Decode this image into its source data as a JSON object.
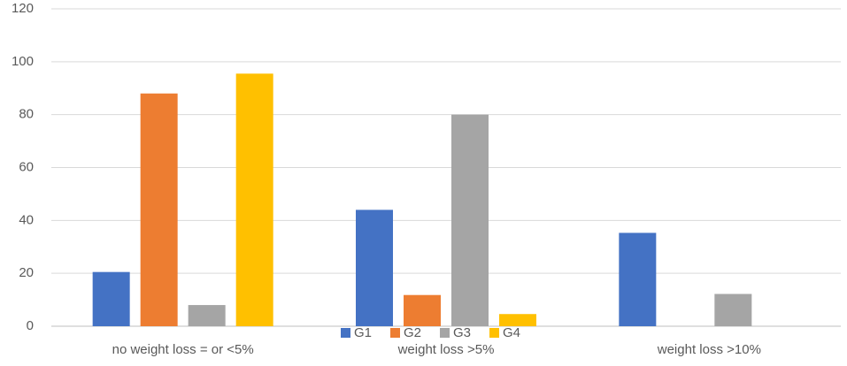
{
  "chart_data": {
    "type": "bar",
    "categories": [
      "no weight loss = or <5%",
      "weight loss >5%",
      "weight loss >10%"
    ],
    "series": [
      {
        "name": "G1",
        "color": "#4472c4",
        "values": [
          20.5,
          44,
          35.3
        ]
      },
      {
        "name": "G2",
        "color": "#ed7d31",
        "values": [
          88,
          11.8,
          0
        ]
      },
      {
        "name": "G3",
        "color": "#a5a5a5",
        "values": [
          8,
          80,
          12.2
        ]
      },
      {
        "name": "G4",
        "color": "#ffc000",
        "values": [
          95.5,
          4.6,
          0
        ]
      }
    ],
    "ylim": [
      0,
      120
    ],
    "yticks": [
      0,
      20,
      40,
      60,
      80,
      100,
      120
    ],
    "grid": true,
    "legend": "bottom"
  }
}
